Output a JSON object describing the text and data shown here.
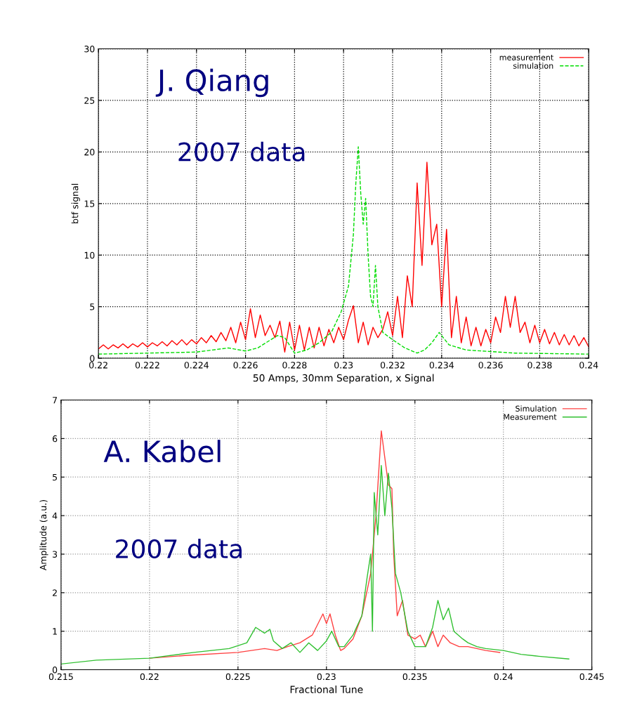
{
  "chart_data": [
    {
      "type": "line",
      "xlabel": "50 Amps, 30mm Separation, x Signal",
      "ylabel": "btf signal",
      "annotations": [
        "J. Qiang",
        "2007 data"
      ],
      "xlim": [
        0.22,
        0.24
      ],
      "xticks": [
        0.22,
        0.222,
        0.224,
        0.226,
        0.228,
        0.23,
        0.232,
        0.234,
        0.236,
        0.238,
        0.24
      ],
      "ylim": [
        0,
        30
      ],
      "yticks": [
        0,
        5,
        10,
        15,
        20,
        25,
        30
      ],
      "grid": true,
      "legend": "top right",
      "marker": "none",
      "series": [
        {
          "name": "measurement",
          "color": "#ff0000",
          "line_style": "solid",
          "x": [
            0.22,
            0.2202,
            0.2204,
            0.2206,
            0.2208,
            0.221,
            0.2212,
            0.2214,
            0.2216,
            0.2218,
            0.222,
            0.2222,
            0.2224,
            0.2226,
            0.2228,
            0.223,
            0.2232,
            0.2234,
            0.2236,
            0.2238,
            0.224,
            0.2242,
            0.2244,
            0.2246,
            0.2248,
            0.225,
            0.2252,
            0.2254,
            0.2256,
            0.2258,
            0.226,
            0.2262,
            0.2264,
            0.2266,
            0.2268,
            0.227,
            0.2272,
            0.2274,
            0.2276,
            0.2278,
            0.228,
            0.2282,
            0.2284,
            0.2286,
            0.2288,
            0.229,
            0.2292,
            0.2294,
            0.2296,
            0.2298,
            0.23,
            0.2302,
            0.2304,
            0.2306,
            0.2308,
            0.231,
            0.2312,
            0.2314,
            0.2316,
            0.2318,
            0.232,
            0.2322,
            0.2324,
            0.2326,
            0.2328,
            0.233,
            0.2332,
            0.2334,
            0.2336,
            0.2338,
            0.234,
            0.2342,
            0.2344,
            0.2346,
            0.2348,
            0.235,
            0.2352,
            0.2354,
            0.2356,
            0.2358,
            0.236,
            0.2362,
            0.2364,
            0.2366,
            0.2368,
            0.237,
            0.2372,
            0.2374,
            0.2376,
            0.2378,
            0.238,
            0.2382,
            0.2384,
            0.2386,
            0.2388,
            0.239,
            0.2392,
            0.2394,
            0.2396,
            0.2398,
            0.24
          ],
          "values": [
            0.9,
            1.3,
            0.9,
            1.3,
            1.0,
            1.4,
            1.0,
            1.4,
            1.1,
            1.5,
            1.1,
            1.5,
            1.2,
            1.6,
            1.2,
            1.7,
            1.3,
            1.8,
            1.3,
            1.8,
            1.4,
            2.0,
            1.5,
            2.2,
            1.6,
            2.5,
            1.7,
            3.0,
            1.5,
            3.5,
            1.8,
            4.8,
            2.0,
            4.2,
            2.2,
            3.2,
            2.0,
            3.6,
            0.6,
            3.5,
            0.8,
            3.2,
            0.8,
            3.0,
            1.0,
            3.0,
            1.2,
            2.8,
            1.5,
            3.0,
            1.8,
            3.7,
            5.1,
            1.5,
            3.5,
            1.3,
            3.0,
            2.0,
            2.8,
            4.5,
            2.2,
            6.0,
            2.0,
            8.0,
            5.0,
            17.0,
            9.0,
            19.0,
            11.0,
            13.0,
            5.0,
            12.5,
            2.0,
            6.0,
            1.5,
            4.0,
            1.2,
            3.0,
            1.2,
            2.8,
            1.5,
            4.0,
            2.5,
            6.0,
            3.0,
            6.0,
            2.5,
            3.5,
            1.5,
            3.2,
            1.5,
            2.8,
            1.4,
            2.5,
            1.3,
            2.3,
            1.3,
            2.2,
            1.2,
            2.0,
            1.1
          ]
        },
        {
          "name": "simulation",
          "color": "#00dd00",
          "line_style": "dashed",
          "x": [
            0.22,
            0.224,
            0.2253,
            0.226,
            0.2265,
            0.2273,
            0.2276,
            0.228,
            0.2285,
            0.229,
            0.2295,
            0.2299,
            0.2302,
            0.2304,
            0.2305,
            0.2306,
            0.2307,
            0.2308,
            0.2309,
            0.231,
            0.2311,
            0.2312,
            0.2313,
            0.2314,
            0.2316,
            0.232,
            0.2325,
            0.233,
            0.2333,
            0.2336,
            0.2339,
            0.2343,
            0.235,
            0.237,
            0.24
          ],
          "values": [
            0.4,
            0.6,
            1.0,
            0.7,
            1.0,
            2.2,
            2.0,
            0.5,
            0.8,
            1.5,
            2.5,
            4.5,
            7,
            12,
            17,
            20.5,
            16,
            13,
            15.5,
            10,
            6,
            5,
            9,
            5,
            2.5,
            1.8,
            1.0,
            0.5,
            0.8,
            1.5,
            2.5,
            1.3,
            0.8,
            0.5,
            0.4
          ]
        }
      ]
    },
    {
      "type": "line",
      "xlabel": "Fractional Tune",
      "ylabel": "Amplitude (a.u.)",
      "annotations": [
        "A. Kabel",
        "2007 data"
      ],
      "xlim": [
        0.215,
        0.245
      ],
      "xticks": [
        0.215,
        0.22,
        0.225,
        0.23,
        0.235,
        0.24,
        0.245
      ],
      "ylim": [
        0,
        7
      ],
      "yticks": [
        0,
        1,
        2,
        3,
        4,
        5,
        6,
        7
      ],
      "grid": true,
      "legend": "top right",
      "marker": "none",
      "series": [
        {
          "name": "Simulation",
          "color": "#ff4040",
          "line_style": "solid",
          "x": [
            0.22,
            0.222,
            0.225,
            0.2265,
            0.2272,
            0.2278,
            0.2285,
            0.2292,
            0.2298,
            0.23,
            0.2302,
            0.2305,
            0.2308,
            0.231,
            0.2315,
            0.232,
            0.2325,
            0.2328,
            0.2331,
            0.2333,
            0.2335,
            0.2337,
            0.2338,
            0.234,
            0.2343,
            0.2346,
            0.235,
            0.2353,
            0.2356,
            0.236,
            0.2363,
            0.2366,
            0.237,
            0.2375,
            0.238,
            0.239,
            0.2398
          ],
          "values": [
            0.3,
            0.37,
            0.45,
            0.55,
            0.5,
            0.6,
            0.7,
            0.9,
            1.45,
            1.2,
            1.45,
            0.9,
            0.5,
            0.55,
            0.8,
            1.4,
            2.5,
            4.0,
            6.2,
            5.5,
            4.8,
            4.7,
            3.0,
            1.4,
            1.8,
            0.9,
            0.8,
            0.9,
            0.6,
            1.0,
            0.6,
            0.9,
            0.7,
            0.6,
            0.6,
            0.5,
            0.45
          ]
        },
        {
          "name": "Measurement",
          "color": "#30c030",
          "line_style": "solid",
          "x": [
            0.215,
            0.217,
            0.22,
            0.2225,
            0.2245,
            0.2255,
            0.226,
            0.2265,
            0.2268,
            0.227,
            0.2275,
            0.228,
            0.2285,
            0.229,
            0.2295,
            0.23,
            0.2303,
            0.2307,
            0.231,
            0.2315,
            0.232,
            0.2323,
            0.2325,
            0.2326,
            0.2327,
            0.2329,
            0.2331,
            0.2333,
            0.2335,
            0.2337,
            0.2339,
            0.2342,
            0.2346,
            0.235,
            0.2356,
            0.236,
            0.2363,
            0.2366,
            0.2369,
            0.2372,
            0.2377,
            0.238,
            0.2385,
            0.239,
            0.24,
            0.241,
            0.242,
            0.2437
          ],
          "values": [
            0.15,
            0.25,
            0.3,
            0.45,
            0.55,
            0.7,
            1.1,
            0.95,
            1.05,
            0.75,
            0.55,
            0.7,
            0.45,
            0.7,
            0.5,
            0.75,
            1.0,
            0.6,
            0.6,
            0.9,
            1.4,
            2.4,
            3.0,
            1.0,
            4.6,
            3.5,
            5.3,
            4.0,
            5.1,
            4.2,
            2.5,
            2.0,
            1.0,
            0.6,
            0.6,
            1.1,
            1.8,
            1.3,
            1.6,
            1.0,
            0.8,
            0.7,
            0.6,
            0.55,
            0.5,
            0.4,
            0.35,
            0.28
          ]
        }
      ]
    }
  ]
}
